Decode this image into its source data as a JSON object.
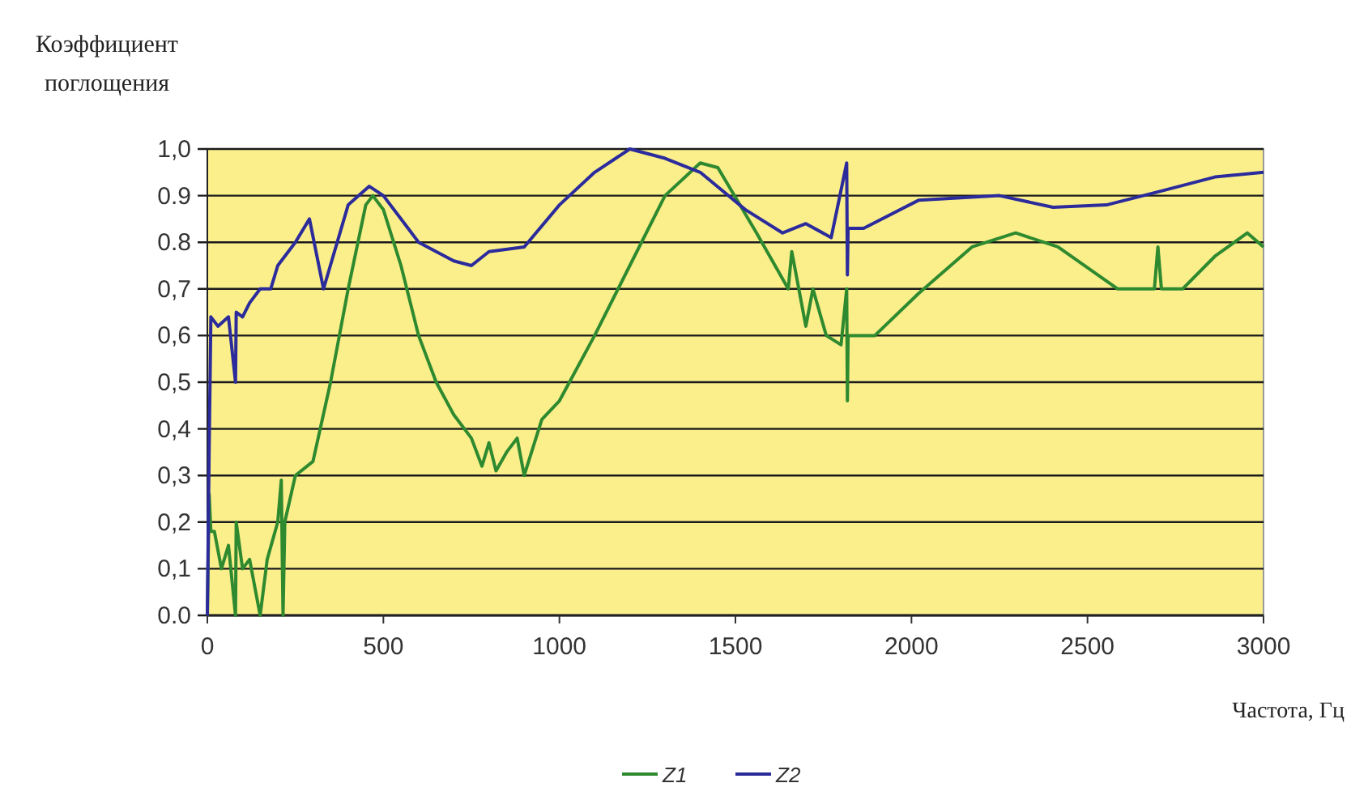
{
  "chart_data": {
    "type": "line",
    "ylabel": "Коэффициент поглощения",
    "xlabel": "Частота, Гц",
    "xlim": [
      0,
      3000
    ],
    "ylim": [
      0,
      1
    ],
    "xticks": [
      0,
      500,
      1000,
      1500,
      2000,
      2500,
      3000
    ],
    "yticks": [
      {
        "value": 0,
        "label": "0.0"
      },
      {
        "value": 0.1,
        "label": "0,1"
      },
      {
        "value": 0.2,
        "label": "0,2"
      },
      {
        "value": 0.3,
        "label": "0,3"
      },
      {
        "value": 0.4,
        "label": "0,4"
      },
      {
        "value": 0.5,
        "label": "0,5"
      },
      {
        "value": 0.6,
        "label": "0,6"
      },
      {
        "value": 0.7,
        "label": "0,7"
      },
      {
        "value": 0.8,
        "label": "0.8"
      },
      {
        "value": 0.9,
        "label": "0.9"
      },
      {
        "value": 1,
        "label": "1,0"
      }
    ],
    "grid": "y",
    "legend": "bottom",
    "marker": "none",
    "line_style": "solid",
    "series": [
      {
        "name": "Z1",
        "color": "#2f8a2f",
        "x": [
          0,
          5,
          10,
          20,
          40,
          60,
          80,
          82,
          100,
          120,
          150,
          170,
          200,
          210,
          215,
          220,
          250,
          300,
          350,
          400,
          450,
          470,
          500,
          550,
          600,
          650,
          700,
          750,
          780,
          800,
          820,
          850,
          880,
          900,
          950,
          1000,
          1100,
          1200,
          1300,
          1400,
          1450,
          1560,
          1650,
          1660,
          1700,
          1720,
          1758,
          1800,
          1816,
          1818,
          1820,
          1896,
          2020,
          2172,
          2296,
          2416,
          2586,
          2690,
          2700,
          2710,
          2770,
          2862,
          2954,
          3000
        ],
        "values": [
          0,
          0.26,
          0.18,
          0.18,
          0.1,
          0.15,
          0,
          0.2,
          0.1,
          0.12,
          0,
          0.12,
          0.2,
          0.29,
          0,
          0.2,
          0.3,
          0.33,
          0.5,
          0.7,
          0.88,
          0.9,
          0.87,
          0.75,
          0.6,
          0.5,
          0.43,
          0.38,
          0.32,
          0.37,
          0.31,
          0.35,
          0.38,
          0.3,
          0.42,
          0.46,
          0.6,
          0.75,
          0.9,
          0.97,
          0.96,
          0.82,
          0.7,
          0.78,
          0.62,
          0.7,
          0.6,
          0.58,
          0.7,
          0.46,
          0.6,
          0.6,
          0.69,
          0.79,
          0.82,
          0.79,
          0.7,
          0.7,
          0.79,
          0.7,
          0.7,
          0.77,
          0.82,
          0.79
        ]
      },
      {
        "name": "Z2",
        "color": "#2b2b9c",
        "x": [
          0,
          5,
          10,
          30,
          60,
          80,
          82,
          100,
          120,
          150,
          180,
          200,
          250,
          290,
          330,
          400,
          460,
          500,
          600,
          700,
          750,
          800,
          900,
          1000,
          1100,
          1200,
          1300,
          1400,
          1528,
          1634,
          1700,
          1772,
          1816,
          1818,
          1820,
          1864,
          2020,
          2250,
          2402,
          2554,
          2710,
          2862,
          3000
        ],
        "values": [
          0,
          0.35,
          0.64,
          0.62,
          0.64,
          0.5,
          0.65,
          0.64,
          0.67,
          0.7,
          0.7,
          0.75,
          0.8,
          0.85,
          0.7,
          0.88,
          0.92,
          0.9,
          0.8,
          0.76,
          0.75,
          0.78,
          0.79,
          0.88,
          0.95,
          1,
          0.98,
          0.95,
          0.87,
          0.82,
          0.84,
          0.81,
          0.97,
          0.73,
          0.83,
          0.83,
          0.89,
          0.9,
          0.875,
          0.88,
          0.91,
          0.94,
          0.95
        ]
      }
    ]
  }
}
